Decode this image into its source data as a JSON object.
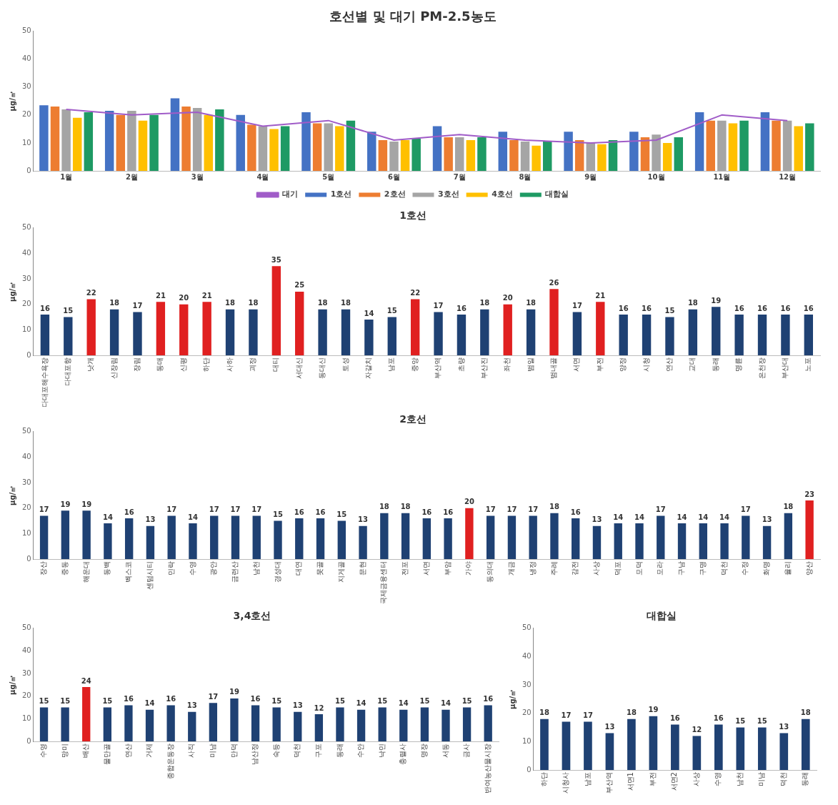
{
  "chart_data": [
    {
      "type": "bar",
      "title": "호선별 및 대기 PM-2.5농도",
      "ylabel": "μg/㎥",
      "categories": [
        "1월",
        "2월",
        "3월",
        "4월",
        "5월",
        "6월",
        "7월",
        "8월",
        "9월",
        "10월",
        "11월",
        "12월"
      ],
      "ylim": [
        0,
        50
      ],
      "yticks": [
        0,
        10,
        20,
        30,
        40,
        50
      ],
      "legend": "bottom",
      "marker": "none",
      "series": [
        {
          "name": "1호선",
          "color": "#4472c4",
          "values": [
            23.5,
            21.5,
            26,
            20,
            21,
            14,
            16,
            14,
            14,
            14,
            21,
            21
          ]
        },
        {
          "name": "2호선",
          "color": "#ed7d31",
          "values": [
            23,
            20,
            23,
            16.5,
            17,
            11,
            12,
            11,
            11,
            12,
            18,
            18
          ]
        },
        {
          "name": "3호선",
          "color": "#a5a5a5",
          "values": [
            22,
            21.5,
            22.5,
            16,
            17,
            10.5,
            12,
            10.5,
            10,
            13,
            18,
            18
          ]
        },
        {
          "name": "4호선",
          "color": "#ffc000",
          "values": [
            19,
            18,
            20,
            15,
            16,
            11,
            11,
            9,
            9.5,
            10,
            17,
            16
          ]
        },
        {
          "name": "대합실",
          "color": "#1e9a64",
          "values": [
            21,
            20,
            22,
            16,
            18,
            11.5,
            12,
            10.5,
            11,
            12,
            18,
            17
          ]
        },
        {
          "name": "대기",
          "type": "line",
          "color": "#a05cc8",
          "values": [
            22,
            20,
            21,
            16,
            18,
            11,
            13,
            11,
            10,
            11,
            20,
            18
          ]
        }
      ]
    },
    {
      "type": "bar",
      "title": "1호선",
      "ylabel": "μg/㎥",
      "ylim": [
        0,
        50
      ],
      "yticks": [
        0,
        10,
        20,
        30,
        40,
        50
      ],
      "data_labels": true,
      "categories": [
        "다대포해수욕장",
        "다대포항",
        "낫개",
        "신장림",
        "장림",
        "동매",
        "신평",
        "하단",
        "사하",
        "괴정",
        "대티",
        "서대신",
        "동대신",
        "토성",
        "자갈치",
        "남포",
        "중앙",
        "부산역",
        "초량",
        "부산진",
        "좌천",
        "범일",
        "범내골",
        "서면",
        "부전",
        "양정",
        "시청",
        "연산",
        "교대",
        "동래",
        "명륜",
        "온천장",
        "부산대",
        "노포"
      ],
      "values": [
        16,
        15,
        22,
        18,
        17,
        21,
        20,
        21,
        18,
        18,
        35,
        25,
        18,
        18,
        14,
        15,
        22,
        17,
        16,
        18,
        20,
        18,
        26,
        17,
        21,
        16,
        16,
        15,
        18,
        19,
        16,
        16,
        16,
        16
      ],
      "colors": [
        "#1f4173",
        "#1f4173",
        "#e02020",
        "#1f4173",
        "#1f4173",
        "#e02020",
        "#e02020",
        "#e02020",
        "#1f4173",
        "#1f4173",
        "#e02020",
        "#e02020",
        "#1f4173",
        "#1f4173",
        "#1f4173",
        "#1f4173",
        "#e02020",
        "#1f4173",
        "#1f4173",
        "#1f4173",
        "#e02020",
        "#1f4173",
        "#e02020",
        "#1f4173",
        "#e02020",
        "#1f4173",
        "#1f4173",
        "#1f4173",
        "#1f4173",
        "#1f4173",
        "#1f4173",
        "#1f4173",
        "#1f4173",
        "#1f4173"
      ]
    },
    {
      "type": "bar",
      "title": "2호선",
      "ylabel": "μg/㎥",
      "ylim": [
        0,
        50
      ],
      "yticks": [
        0,
        10,
        20,
        30,
        40,
        50
      ],
      "data_labels": true,
      "categories": [
        "장산",
        "중동",
        "해운대",
        "동백",
        "벡스코",
        "센텀시티",
        "민락",
        "수영",
        "광안",
        "금련산",
        "남천",
        "경성대",
        "대연",
        "못골",
        "지게골",
        "문현",
        "국제금융센터",
        "전포",
        "서면",
        "부암",
        "가야",
        "동의대",
        "개금",
        "냉정",
        "주례",
        "감전",
        "사상",
        "덕포",
        "모덕",
        "모라",
        "구남",
        "구명",
        "덕천",
        "수정",
        "화명",
        "율리",
        "양산"
      ],
      "values": [
        17,
        19,
        19,
        14,
        16,
        13,
        17,
        14,
        17,
        17,
        17,
        15,
        16,
        16,
        15,
        13,
        18,
        18,
        16,
        16,
        20,
        17,
        17,
        17,
        18,
        16,
        13,
        14,
        14,
        17,
        14,
        14,
        14,
        17,
        13,
        18,
        23
      ],
      "colors": [
        "#1f4173",
        "#1f4173",
        "#1f4173",
        "#1f4173",
        "#1f4173",
        "#1f4173",
        "#1f4173",
        "#1f4173",
        "#1f4173",
        "#1f4173",
        "#1f4173",
        "#1f4173",
        "#1f4173",
        "#1f4173",
        "#1f4173",
        "#1f4173",
        "#1f4173",
        "#1f4173",
        "#1f4173",
        "#1f4173",
        "#e02020",
        "#1f4173",
        "#1f4173",
        "#1f4173",
        "#1f4173",
        "#1f4173",
        "#1f4173",
        "#1f4173",
        "#1f4173",
        "#1f4173",
        "#1f4173",
        "#1f4173",
        "#1f4173",
        "#1f4173",
        "#1f4173",
        "#1f4173",
        "#e02020"
      ]
    },
    {
      "type": "bar",
      "title": "3,4호선",
      "ylabel": "μg/㎥",
      "ylim": [
        0,
        50
      ],
      "yticks": [
        0,
        10,
        20,
        30,
        40,
        50
      ],
      "data_labels": true,
      "categories": [
        "수영",
        "망미",
        "배산",
        "물만골",
        "연산",
        "거제",
        "종합운동장",
        "사직",
        "미남",
        "만덕",
        "남산정",
        "숙등",
        "덕천",
        "구포",
        "동래",
        "수안",
        "낙민",
        "충렬사",
        "명장",
        "서동",
        "금사",
        "반여농산물시장"
      ],
      "values": [
        15,
        15,
        24,
        15,
        16,
        14,
        16,
        13,
        17,
        19,
        16,
        15,
        13,
        12,
        15,
        14,
        15,
        14,
        15,
        14,
        15,
        16
      ],
      "colors": [
        "#1f4173",
        "#1f4173",
        "#e02020",
        "#1f4173",
        "#1f4173",
        "#1f4173",
        "#1f4173",
        "#1f4173",
        "#1f4173",
        "#1f4173",
        "#1f4173",
        "#1f4173",
        "#1f4173",
        "#1f4173",
        "#1f4173",
        "#1f4173",
        "#1f4173",
        "#1f4173",
        "#1f4173",
        "#1f4173",
        "#1f4173",
        "#1f4173"
      ]
    },
    {
      "type": "bar",
      "title": "대합실",
      "ylabel": "μg/㎥",
      "ylim": [
        0,
        50
      ],
      "yticks": [
        0,
        10,
        20,
        30,
        40,
        50
      ],
      "data_labels": true,
      "categories": [
        "하단",
        "시청사",
        "남포",
        "부산역",
        "서면1",
        "부전",
        "서면2",
        "사상",
        "수영",
        "남천",
        "미남",
        "덕천",
        "동래"
      ],
      "values": [
        18,
        17,
        17,
        13,
        18,
        19,
        16,
        12,
        16,
        15,
        15,
        13,
        18
      ],
      "colors": [
        "#1f4173",
        "#1f4173",
        "#1f4173",
        "#1f4173",
        "#1f4173",
        "#1f4173",
        "#1f4173",
        "#1f4173",
        "#1f4173",
        "#1f4173",
        "#1f4173",
        "#1f4173",
        "#1f4173"
      ]
    }
  ]
}
